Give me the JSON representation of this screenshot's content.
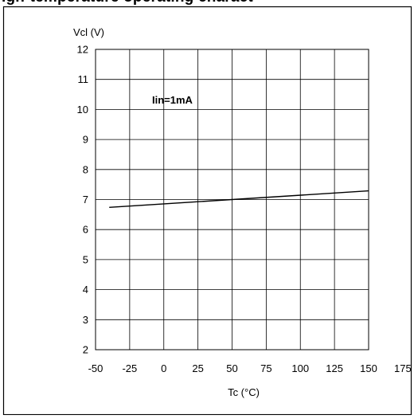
{
  "header": {
    "cropped_title": "igh-temperature operating charact"
  },
  "chart_data": {
    "type": "line",
    "title": "",
    "ylabel": "Vcl (V)",
    "xlabel": "Tc (°C)",
    "annotation": "Iin=1mA",
    "xlim": [
      -50,
      175
    ],
    "ylim": [
      2,
      12
    ],
    "x_ticks": [
      -50,
      -25,
      0,
      25,
      50,
      75,
      100,
      125,
      150,
      175
    ],
    "y_ticks": [
      2,
      3,
      4,
      5,
      6,
      7,
      8,
      9,
      10,
      11,
      12
    ],
    "grid": true,
    "series": [
      {
        "x": [
          -40,
          150
        ],
        "y": [
          6.74,
          7.29
        ],
        "color": "#000000"
      }
    ]
  }
}
